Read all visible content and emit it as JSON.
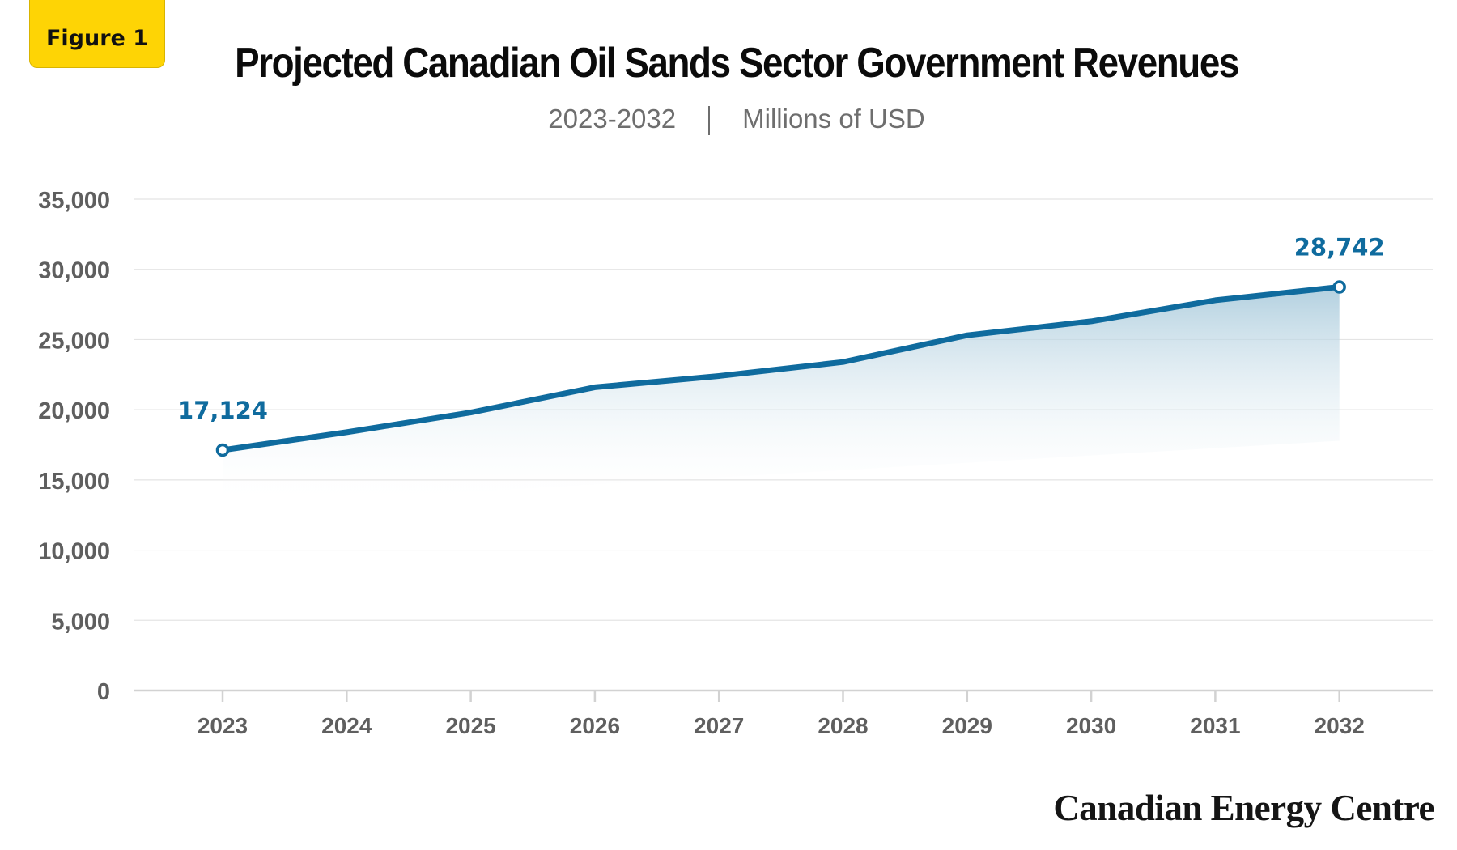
{
  "badge": {
    "label": "Figure 1"
  },
  "header": {
    "title": "Projected Canadian Oil Sands Sector Government Revenues",
    "subtitle_period": "2023-2032",
    "subtitle_unit": "Millions of USD"
  },
  "footer": {
    "brand": "Canadian Energy Centre"
  },
  "colors": {
    "badge": "#fed405",
    "series": "#0f6b9e",
    "fill_top": "#aacbdc",
    "grid": "#e4e4e4",
    "axis_text": "#5f5f5f"
  },
  "chart_data": {
    "type": "area",
    "title": "Projected Canadian Oil Sands Sector Government Revenues",
    "subtitle": "2023-2032 | Millions of USD",
    "x": [
      "2023",
      "2024",
      "2025",
      "2026",
      "2027",
      "2028",
      "2029",
      "2030",
      "2031",
      "2032"
    ],
    "series": [
      {
        "values": [
          17124,
          18400,
          19800,
          21600,
          22400,
          23400,
          25300,
          26300,
          27800,
          28742
        ]
      }
    ],
    "data_labels": [
      {
        "x": "2023",
        "text": "17,124"
      },
      {
        "x": "2032",
        "text": "28,742"
      }
    ],
    "yticks": [
      "0",
      "5,000",
      "10,000",
      "15,000",
      "20,000",
      "25,000",
      "30,000",
      "35,000"
    ],
    "ylim": [
      0,
      35000
    ],
    "xlabel": "",
    "ylabel": "",
    "grid": true,
    "legend": "none"
  }
}
